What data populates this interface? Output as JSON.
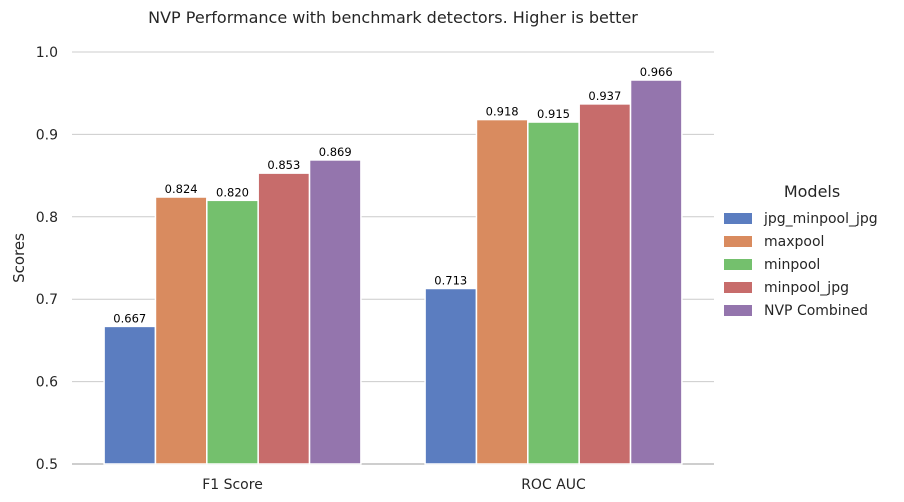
{
  "chart_data": {
    "type": "bar",
    "title": "NVP Performance with benchmark detectors. Higher is better",
    "xlabel": "",
    "ylabel": "Scores",
    "ylim": [
      0.5,
      1.0
    ],
    "yticks": [
      "0.5",
      "0.6",
      "0.7",
      "0.8",
      "0.9",
      "1.0"
    ],
    "grid": true,
    "legend_title": "Models",
    "legend_position": "right",
    "categories": [
      "F1 Score",
      "ROC AUC"
    ],
    "series": [
      {
        "name": "jpg_minpool_jpg",
        "color": "#5b7dc0",
        "values": [
          0.667,
          0.713
        ],
        "labels": [
          "0.667",
          "0.713"
        ]
      },
      {
        "name": "maxpool",
        "color": "#d98b5f",
        "values": [
          0.824,
          0.918
        ],
        "labels": [
          "0.824",
          "0.918"
        ]
      },
      {
        "name": "minpool",
        "color": "#74c06d",
        "values": [
          0.82,
          0.915
        ],
        "labels": [
          "0.820",
          "0.915"
        ]
      },
      {
        "name": "minpool_jpg",
        "color": "#c76c6b",
        "values": [
          0.853,
          0.937
        ],
        "labels": [
          "0.853",
          "0.937"
        ]
      },
      {
        "name": "NVP Combined",
        "color": "#9475ad",
        "values": [
          0.869,
          0.966
        ],
        "labels": [
          "0.869",
          "0.966"
        ]
      }
    ]
  }
}
